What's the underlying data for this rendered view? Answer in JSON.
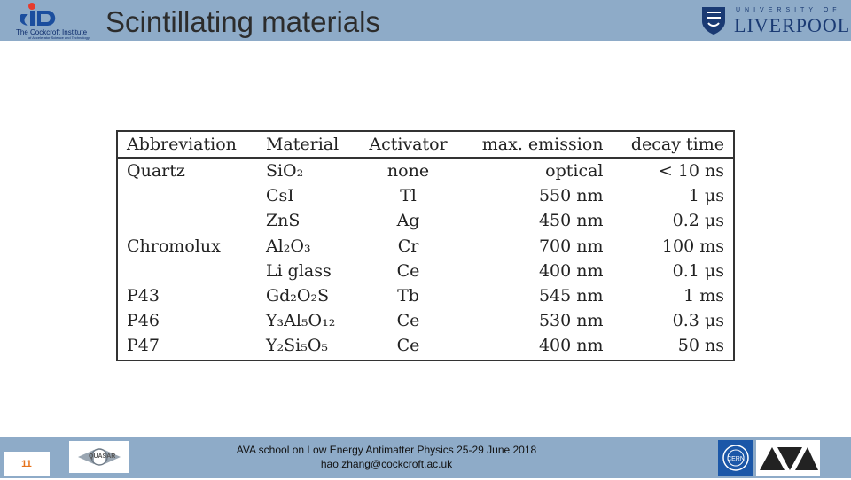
{
  "header": {
    "institute_name": "The Cockcroft Institute",
    "institute_sub": "of Accelerator Science and Technology",
    "title": "Scintillating materials",
    "university_top": "UNIVERSITY OF",
    "university_name": "LIVERPOOL"
  },
  "table": {
    "columns": [
      "Abbreviation",
      "Material",
      "Activator",
      "max. emission",
      "decay time"
    ],
    "rows": [
      {
        "abbr": "Quartz",
        "material": "SiO₂",
        "activator": "none",
        "emission": "optical",
        "decay": "< 10 ns"
      },
      {
        "abbr": "",
        "material": "CsI",
        "activator": "Tl",
        "emission": "550 nm",
        "decay": "1 μs"
      },
      {
        "abbr": "",
        "material": "ZnS",
        "activator": "Ag",
        "emission": "450 nm",
        "decay": "0.2 μs"
      },
      {
        "abbr": "Chromolux",
        "material": "Al₂O₃",
        "activator": "Cr",
        "emission": "700 nm",
        "decay": "100 ms"
      },
      {
        "abbr": "",
        "material": "Li glass",
        "activator": "Ce",
        "emission": "400 nm",
        "decay": "0.1 μs"
      },
      {
        "abbr": "P43",
        "material": "Gd₂O₂S",
        "activator": "Tb",
        "emission": "545 nm",
        "decay": "1 ms"
      },
      {
        "abbr": "P46",
        "material": "Y₃Al₅O₁₂",
        "activator": "Ce",
        "emission": "530 nm",
        "decay": "0.3 μs"
      },
      {
        "abbr": "P47",
        "material": "Y₂Si₅O₅",
        "activator": "Ce",
        "emission": "400 nm",
        "decay": "50 ns"
      }
    ]
  },
  "footer": {
    "page_number": "11",
    "quasar_label": "QUASAR",
    "line1": "AVA school on Low Energy Antimatter Physics 25-29 June 2018",
    "line2": "hao.zhang@cockcroft.ac.uk",
    "cern_label": "CERN"
  },
  "colors": {
    "bar": "#8eabc8",
    "page_number": "#e6731c",
    "liverpool_blue": "#1a3a73"
  }
}
